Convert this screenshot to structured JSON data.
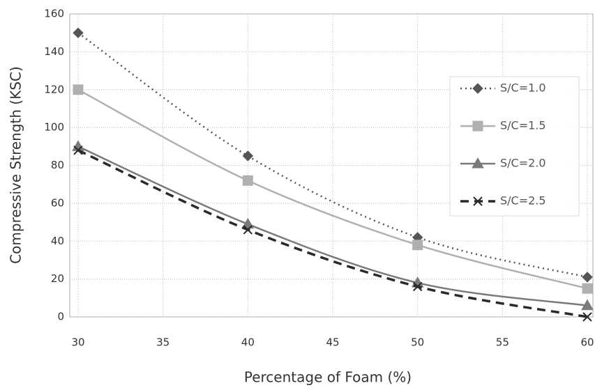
{
  "chart_data": {
    "type": "line",
    "x_label": "Percentage of Foam (%)",
    "y_label": "Compressive Strength (KSC)",
    "x": [
      30,
      40,
      50,
      60
    ],
    "series": [
      {
        "name": "S/C=1.0",
        "color": "#555555",
        "dash": "2,5",
        "marker": "diamond",
        "values": [
          150,
          85,
          42,
          21
        ]
      },
      {
        "name": "S/C=1.5",
        "color": "#b0b0b0",
        "dash": "none",
        "marker": "square",
        "values": [
          120,
          72,
          38,
          15
        ]
      },
      {
        "name": "S/C=2.0",
        "color": "#7a7a7a",
        "dash": "none",
        "marker": "triangle",
        "values": [
          90,
          49,
          18,
          6
        ]
      },
      {
        "name": "S/C=2.5",
        "color": "#2a2a2a",
        "dash": "12,8",
        "marker": "x",
        "values": [
          88,
          46,
          16,
          0
        ]
      }
    ],
    "xlim": [
      30,
      60
    ],
    "xticks": [
      30,
      35,
      40,
      45,
      50,
      55,
      60
    ],
    "ylim": [
      0,
      160
    ],
    "yticks": [
      0,
      20,
      40,
      60,
      80,
      100,
      120,
      140,
      160
    ],
    "grid": true,
    "legend": "right"
  }
}
